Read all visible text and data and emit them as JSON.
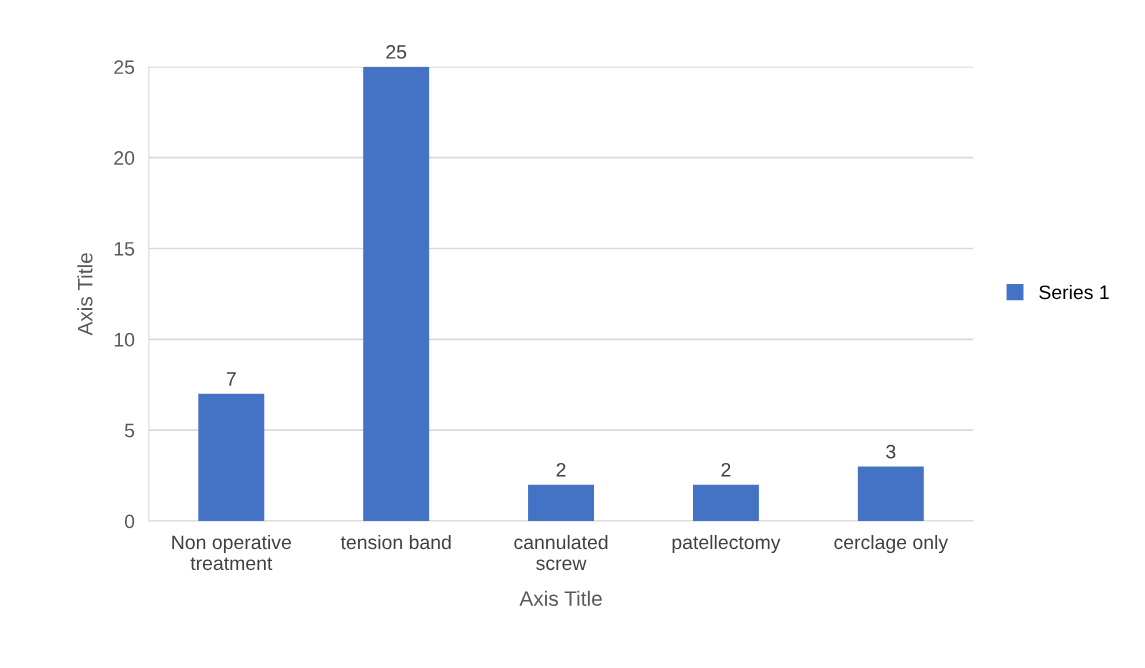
{
  "chart_data": {
    "type": "bar",
    "categories": [
      "Non operative treatment",
      "tension band",
      "cannulated screw",
      "patellectomy",
      "cerclage only"
    ],
    "series": [
      {
        "name": "Series 1",
        "color": "#4472c4",
        "values": [
          7,
          25,
          2,
          2,
          3
        ]
      }
    ],
    "xlabel": "Axis Title",
    "ylabel": "Axis Title",
    "ylim": [
      0,
      25
    ],
    "yticks": [
      0,
      5,
      10,
      15,
      20,
      25
    ],
    "grid": "y",
    "legend": "right",
    "data_labels": true
  }
}
